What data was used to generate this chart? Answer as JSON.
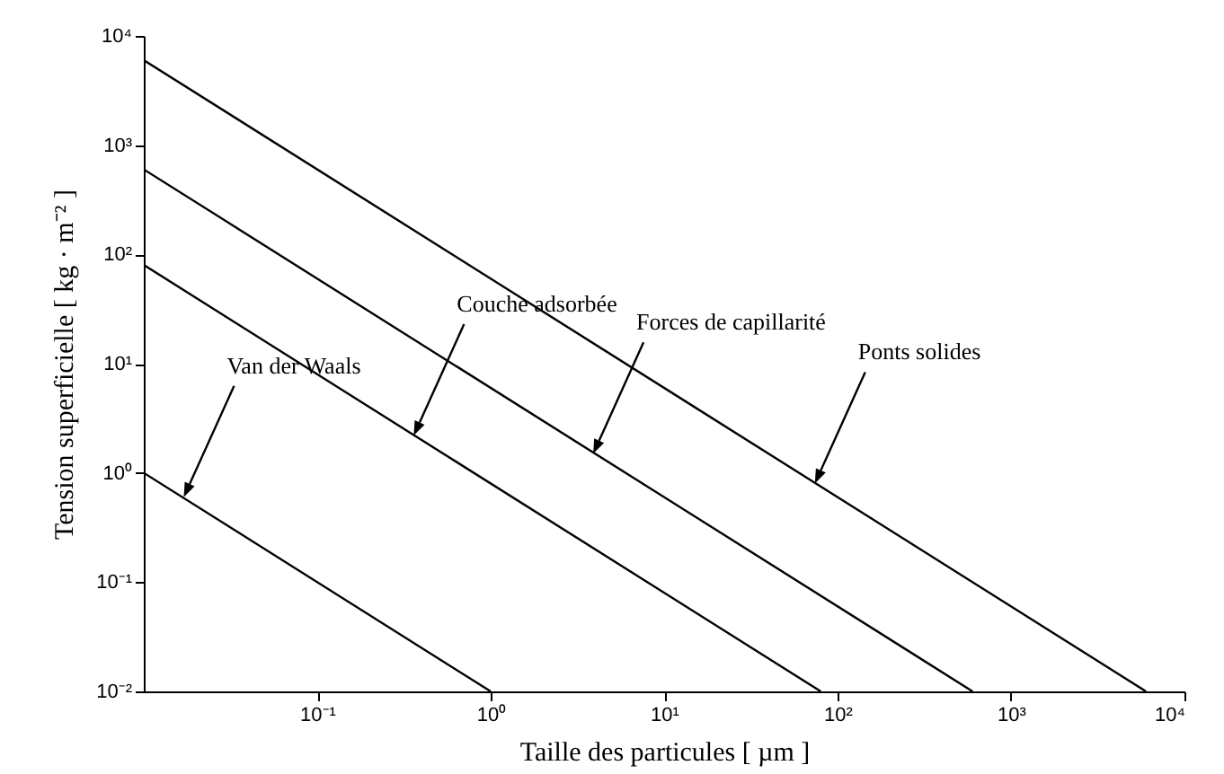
{
  "chart_data": {
    "type": "line",
    "xlabel": "Taille des particules [ µm ]",
    "ylabel": "Tension superficielle [ kg · m⁻² ]",
    "log": "xy",
    "grid": false,
    "line_style": "solid",
    "marker": "none",
    "xlim": [
      0.01,
      10000
    ],
    "ylim": [
      0.01,
      10000
    ],
    "xticks": [
      {
        "value": 0.1,
        "label": "10⁻¹"
      },
      {
        "value": 1,
        "label": "10⁰"
      },
      {
        "value": 10,
        "label": "10¹"
      },
      {
        "value": 100,
        "label": "10²"
      },
      {
        "value": 1000,
        "label": "10³"
      },
      {
        "value": 10000,
        "label": "10⁴"
      }
    ],
    "yticks": [
      {
        "value": 0.01,
        "label": "10⁻²"
      },
      {
        "value": 0.1,
        "label": "10⁻¹"
      },
      {
        "value": 1,
        "label": "10⁰"
      },
      {
        "value": 10,
        "label": "10¹"
      },
      {
        "value": 100,
        "label": "10²"
      },
      {
        "value": 1000,
        "label": "10³"
      },
      {
        "value": 10000,
        "label": "10⁴"
      }
    ],
    "series": [
      {
        "color": "#000000",
        "x": [
          0.01,
          1
        ],
        "values": [
          1,
          0.01
        ]
      },
      {
        "color": "#000000",
        "x": [
          0.01,
          80
        ],
        "values": [
          80,
          0.01
        ]
      },
      {
        "color": "#000000",
        "x": [
          0.01,
          600
        ],
        "values": [
          600,
          0.01
        ]
      },
      {
        "color": "#000000",
        "x": [
          0.01,
          6000
        ],
        "values": [
          6000,
          0.01
        ]
      }
    ],
    "annotations": [
      {
        "text": "Van der Waals",
        "x": 0.017,
        "y": 0.6
      },
      {
        "text": "Couche adsorbée",
        "x": 0.36,
        "y": 2.2
      },
      {
        "text": "Forces de capillarité",
        "x": 3.9,
        "y": 1.5
      },
      {
        "text": "Ponts solides",
        "x": 74,
        "y": 0.8
      }
    ]
  }
}
